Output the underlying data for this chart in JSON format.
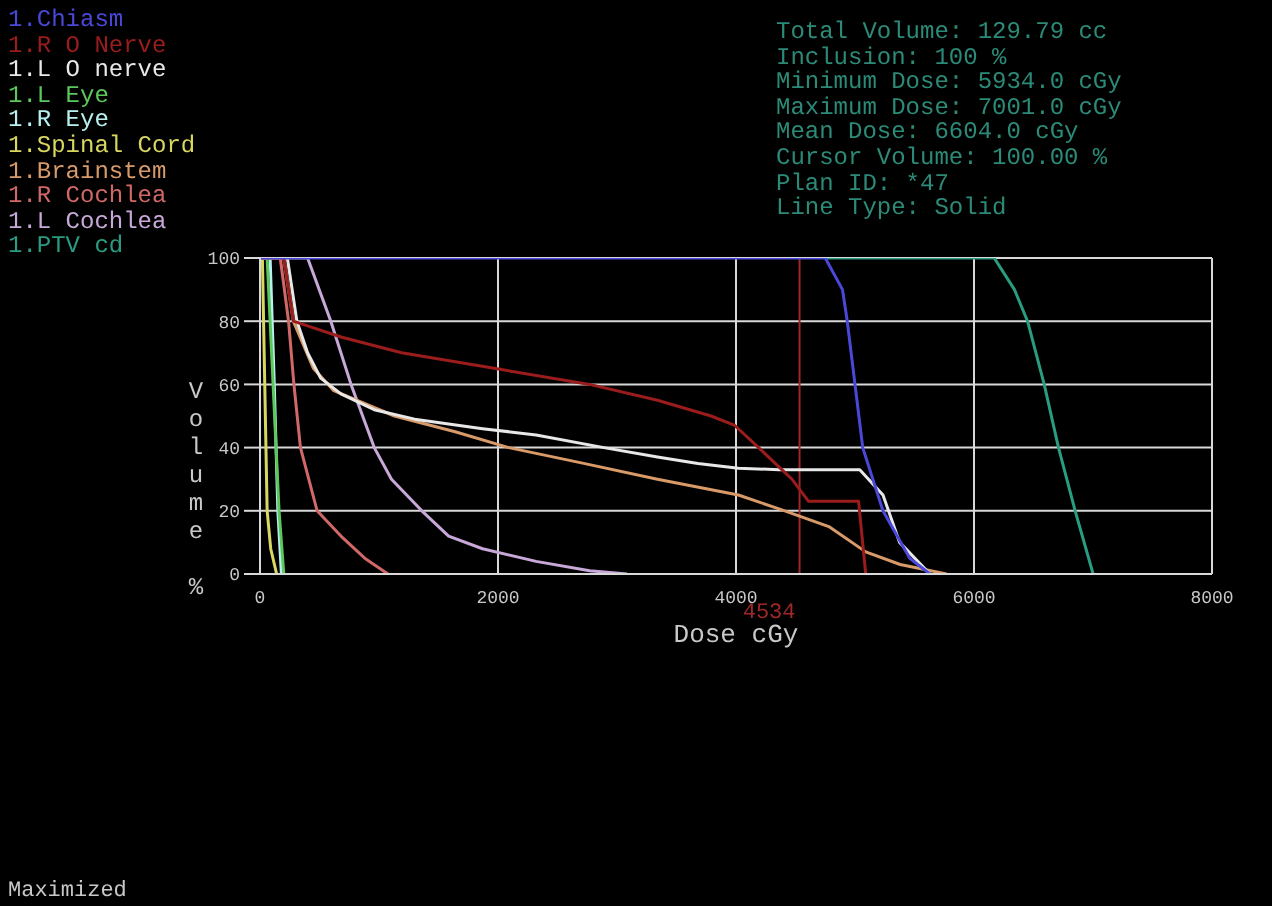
{
  "chart_data": {
    "type": "line",
    "xlabel": "Dose cGy",
    "ylabel": "Volume %",
    "xlim": [
      0,
      8000
    ],
    "xticks": [
      0,
      2000,
      4000,
      6000,
      8000
    ],
    "ylim": [
      0,
      100
    ],
    "yticks": [
      0,
      20,
      40,
      60,
      80,
      100
    ],
    "grid": true,
    "legend": "top left",
    "marker": "none",
    "line_style": "solid",
    "series": [
      {
        "name": "1.Chiasm",
        "color": "#4a48d8",
        "x": [
          0,
          4750,
          4895,
          4935,
          5065,
          5235,
          5460,
          5630
        ],
        "values": [
          100,
          100,
          90,
          80,
          40,
          20,
          5,
          0
        ]
      },
      {
        "name": "1.R O Nerve",
        "color": "#9a1c1c",
        "x": [
          0,
          200,
          280,
          680,
          1190,
          1980,
          2770,
          3340,
          3790,
          3990,
          4190,
          4470,
          4610,
          5030,
          5090
        ],
        "values": [
          100,
          100,
          80,
          75,
          70,
          65,
          60,
          55,
          50,
          47,
          40,
          30,
          23,
          23,
          0
        ]
      },
      {
        "name": "1.L O nerve",
        "color": "#e8e8e8",
        "x": [
          0,
          230,
          310,
          400,
          510,
          680,
          960,
          1300,
          1870,
          2320,
          2890,
          3340,
          3680,
          4020,
          4360,
          5040,
          5235,
          5375,
          5630
        ],
        "values": [
          100,
          100,
          80,
          70,
          62,
          57,
          52,
          49,
          46,
          44,
          40,
          37,
          35,
          33.5,
          33,
          33,
          25,
          10,
          0
        ]
      },
      {
        "name": "1.L Eye",
        "color": "#5cc85c",
        "x": [
          0,
          60,
          110,
          160,
          200
        ],
        "values": [
          100,
          100,
          60,
          20,
          0
        ]
      },
      {
        "name": "1.R Eye",
        "color": "#b8f0f0",
        "x": [
          0,
          85,
          120,
          150,
          180
        ],
        "values": [
          100,
          100,
          60,
          20,
          0
        ]
      },
      {
        "name": "1.Spinal Cord",
        "color": "#d8d860",
        "x": [
          0,
          20,
          40,
          60,
          90,
          140
        ],
        "values": [
          100,
          100,
          60,
          20,
          8,
          0
        ]
      },
      {
        "name": "1.Brainstem",
        "color": "#d89a68",
        "x": [
          0,
          200,
          280,
          450,
          620,
          1130,
          1640,
          2090,
          2720,
          3340,
          4020,
          4410,
          4780,
          5090,
          5380,
          5770
        ],
        "values": [
          100,
          100,
          80,
          65,
          58,
          50,
          45,
          40,
          35,
          30,
          25,
          20,
          15,
          7,
          3,
          0
        ]
      },
      {
        "name": "1.R Cochlea",
        "color": "#d06868",
        "x": [
          0,
          170,
          240,
          285,
          340,
          480,
          680,
          880,
          1075
        ],
        "values": [
          100,
          100,
          80,
          60,
          40,
          20,
          12,
          5,
          0
        ]
      },
      {
        "name": "1.L Cochlea",
        "color": "#c8a8d8",
        "x": [
          0,
          400,
          595,
          765,
          960,
          1105,
          1360,
          1585,
          1870,
          2320,
          2770,
          3085
        ],
        "values": [
          100,
          100,
          80,
          60,
          40,
          30,
          20,
          12,
          8,
          4,
          1,
          0
        ]
      },
      {
        "name": "1.PTV cd",
        "color": "#2a9c82",
        "x": [
          4760,
          6170,
          6340,
          6450,
          6590,
          6710,
          6850,
          7001
        ],
        "values": [
          100,
          100,
          90,
          80,
          60,
          40,
          20,
          0
        ]
      }
    ],
    "ref_lines": [
      {
        "axis": "x",
        "value": 4534,
        "label": "4534",
        "color": "#a02828"
      }
    ],
    "annotations": [
      "Total Volume: 129.79 cc",
      "Inclusion: 100 %",
      "Minimum Dose: 5934.0 cGy",
      "Maximum Dose: 7001.0 cGy",
      "Mean Dose: 6604.0 cGy",
      "Cursor Volume: 100.00 %",
      "Plan ID: *47",
      "Line Type: Solid",
      "Maximized"
    ]
  }
}
